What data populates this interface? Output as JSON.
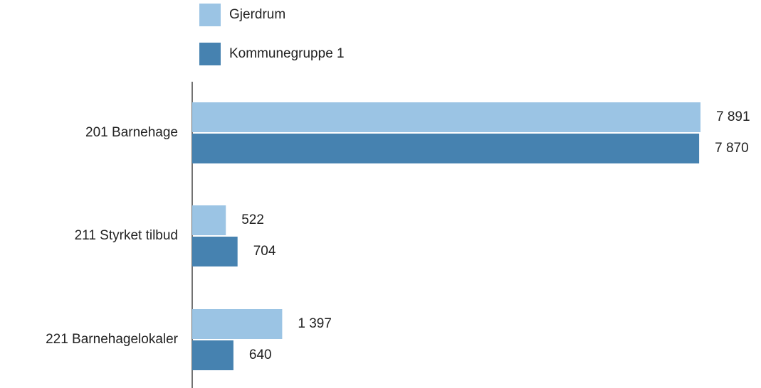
{
  "chart_data": {
    "type": "hbar",
    "categories": [
      "201 Barnehage",
      "211 Styrket tilbud",
      "221 Barnehagelokaler"
    ],
    "series": [
      {
        "name": "Gjerdrum",
        "color": "#9bc4e4",
        "values": [
          7891,
          522,
          1397
        ],
        "value_labels": [
          "7 891",
          "522",
          "1 397"
        ]
      },
      {
        "name": "Kommunegruppe 1",
        "color": "#4682b0",
        "values": [
          7870,
          704,
          640
        ],
        "value_labels": [
          "7 870",
          "704",
          "640"
        ]
      }
    ]
  }
}
